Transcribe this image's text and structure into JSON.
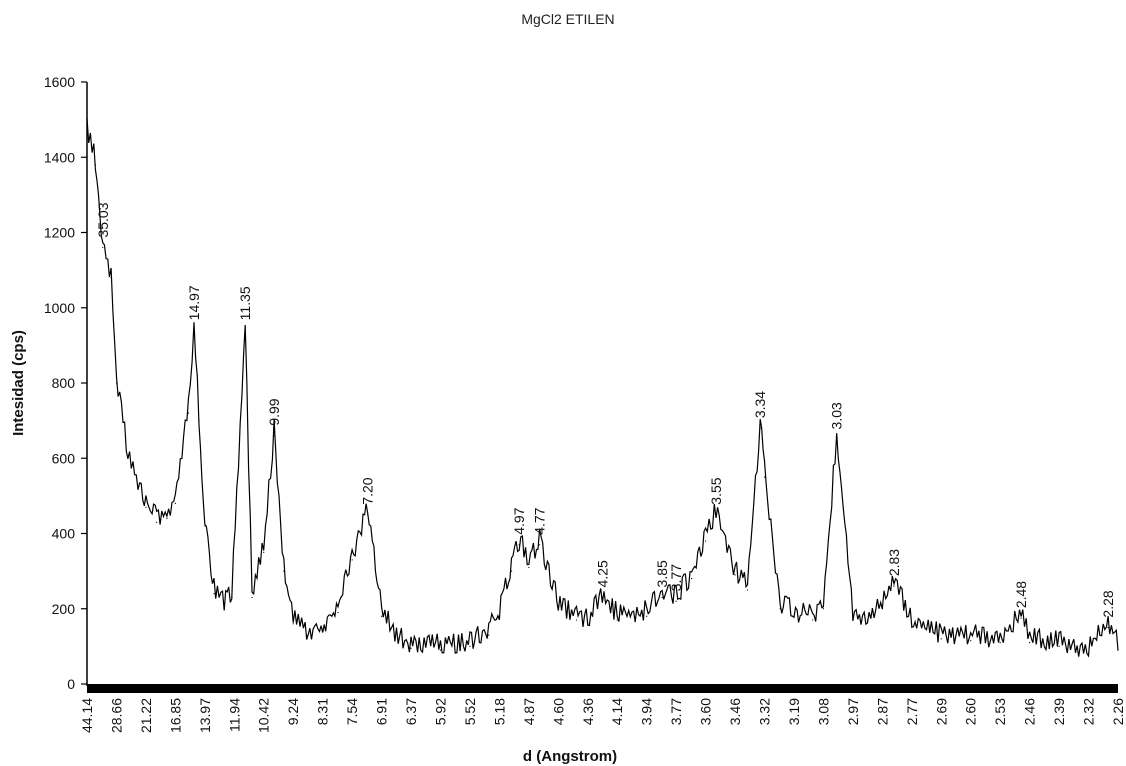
{
  "chart_data": {
    "type": "line",
    "title": "MgCl2 ETILEN",
    "xlabel": "d (Angstrom)",
    "ylabel": "Intesidad (cps)",
    "ylim": [
      0,
      1600
    ],
    "y_ticks": [
      "0",
      "200",
      "400",
      "600",
      "800",
      "1000",
      "1200",
      "1400",
      "1600"
    ],
    "x_ticks": [
      "44.14",
      "28.66",
      "21.22",
      "16.85",
      "13.97",
      "11.94",
      "10.42",
      "9.24",
      "8.31",
      "7.54",
      "6.91",
      "6.37",
      "5.92",
      "5.52",
      "5.18",
      "4.87",
      "4.60",
      "4.36",
      "4.14",
      "3.94",
      "3.77",
      "3.60",
      "3.46",
      "3.32",
      "3.19",
      "3.08",
      "2.97",
      "2.87",
      "2.77",
      "2.69",
      "2.60",
      "2.53",
      "2.46",
      "2.39",
      "2.32",
      "2.26"
    ],
    "grid": false,
    "series": [
      {
        "points": [
          [
            "44.14",
            1470
          ],
          [
            "39.0",
            1380
          ],
          [
            "35.03",
            1160
          ],
          [
            "31.0",
            1080
          ],
          [
            "28.66",
            800
          ],
          [
            "25.5",
            600
          ],
          [
            "23.0",
            520
          ],
          [
            "21.22",
            470
          ],
          [
            "19.5",
            430
          ],
          [
            "18.0",
            440
          ],
          [
            "16.85",
            480
          ],
          [
            "15.5",
            720
          ],
          [
            "14.97",
            940
          ],
          [
            "14.5",
            700
          ],
          [
            "13.97",
            420
          ],
          [
            "13.3",
            240
          ],
          [
            "12.6",
            200
          ],
          [
            "12.1",
            230
          ],
          [
            "11.35",
            940
          ],
          [
            "11.0",
            230
          ],
          [
            "10.42",
            350
          ],
          [
            "9.99",
            660
          ],
          [
            "9.6",
            300
          ],
          [
            "9.24",
            160
          ],
          [
            "8.8",
            130
          ],
          [
            "8.31",
            140
          ],
          [
            "7.9",
            190
          ],
          [
            "7.54",
            330
          ],
          [
            "7.20",
            450
          ],
          [
            "6.91",
            180
          ],
          [
            "6.6",
            110
          ],
          [
            "6.37",
            95
          ],
          [
            "5.92",
            90
          ],
          [
            "5.52",
            100
          ],
          [
            "5.30",
            130
          ],
          [
            "5.18",
            180
          ],
          [
            "5.05",
            300
          ],
          [
            "4.97",
            370
          ],
          [
            "4.87",
            310
          ],
          [
            "4.77",
            370
          ],
          [
            "4.60",
            200
          ],
          [
            "4.45",
            170
          ],
          [
            "4.36",
            160
          ],
          [
            "4.25",
            230
          ],
          [
            "4.14",
            170
          ],
          [
            "3.94",
            180
          ],
          [
            "3.85",
            230
          ],
          [
            "3.77",
            220
          ],
          [
            "3.68",
            280
          ],
          [
            "3.60",
            380
          ],
          [
            "3.55",
            450
          ],
          [
            "3.46",
            290
          ],
          [
            "3.40",
            250
          ],
          [
            "3.34",
            680
          ],
          [
            "3.32",
            550
          ],
          [
            "3.25",
            200
          ],
          [
            "3.19",
            180
          ],
          [
            "3.12",
            170
          ],
          [
            "3.08",
            200
          ],
          [
            "3.03",
            650
          ],
          [
            "2.97",
            170
          ],
          [
            "2.92",
            170
          ],
          [
            "2.87",
            200
          ],
          [
            "2.83",
            260
          ],
          [
            "2.77",
            150
          ],
          [
            "2.69",
            120
          ],
          [
            "2.60",
            115
          ],
          [
            "2.53",
            110
          ],
          [
            "2.48",
            175
          ],
          [
            "2.46",
            110
          ],
          [
            "2.39",
            100
          ],
          [
            "2.32",
            80
          ],
          [
            "2.28",
            150
          ],
          [
            "2.26",
            90
          ]
        ]
      }
    ],
    "peak_labels": [
      "35.03",
      "14.97",
      "11.35",
      "9.99",
      "7.20",
      "4.97",
      "4.77",
      "4.25",
      "3.85",
      "3.77",
      "3.55",
      "3.34",
      "3.03",
      "2.83",
      "2.48",
      "2.28"
    ]
  }
}
